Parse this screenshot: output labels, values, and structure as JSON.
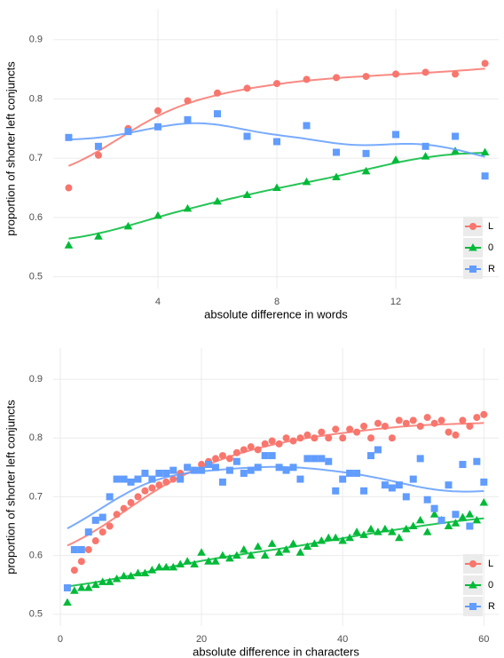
{
  "chart_data": [
    {
      "type": "scatter",
      "xlabel": "absolute difference in words",
      "ylabel": "proportion of shorter left conjuncts",
      "x": [
        1,
        2,
        3,
        4,
        5,
        6,
        7,
        8,
        9,
        10,
        11,
        12,
        13,
        14,
        15
      ],
      "series": [
        {
          "name": "L",
          "color": "#f8766d",
          "marker": "circle",
          "values": [
            0.65,
            0.705,
            0.75,
            0.78,
            0.797,
            0.81,
            0.818,
            0.826,
            0.833,
            0.836,
            0.838,
            0.842,
            0.845,
            0.842,
            0.86
          ]
        },
        {
          "name": "0",
          "color": "#00ba38",
          "marker": "triangle",
          "values": [
            0.553,
            0.568,
            0.585,
            0.603,
            0.615,
            0.627,
            0.638,
            0.65,
            0.66,
            0.668,
            0.678,
            0.697,
            0.703,
            0.712,
            0.71
          ]
        },
        {
          "name": "R",
          "color": "#619cff",
          "marker": "square",
          "values": [
            0.735,
            0.72,
            0.745,
            0.753,
            0.765,
            0.775,
            0.737,
            0.728,
            0.755,
            0.71,
            0.708,
            0.74,
            0.72,
            0.737,
            0.67
          ]
        }
      ],
      "xlim": [
        0.48,
        15.46
      ],
      "xticks": [
        4,
        8,
        12
      ],
      "ylim": [
        0.48,
        0.952
      ],
      "yticks": [
        0.5,
        0.6,
        0.7,
        0.8,
        0.9
      ],
      "grid": true,
      "legend": "bottom-right"
    },
    {
      "type": "scatter",
      "xlabel": "absolute difference in characters",
      "ylabel": "proportion of shorter left conjuncts",
      "x": [
        1,
        2,
        3,
        4,
        5,
        6,
        7,
        8,
        9,
        10,
        11,
        12,
        13,
        14,
        15,
        16,
        17,
        18,
        19,
        20,
        21,
        22,
        23,
        24,
        25,
        26,
        27,
        28,
        29,
        30,
        31,
        32,
        33,
        34,
        35,
        36,
        37,
        38,
        39,
        40,
        41,
        42,
        43,
        44,
        45,
        46,
        47,
        48,
        49,
        50,
        51,
        52,
        53,
        54,
        55,
        56,
        57,
        58,
        59,
        60
      ],
      "series": [
        {
          "name": "L",
          "color": "#f8766d",
          "marker": "circle",
          "values": [
            0.545,
            0.575,
            0.59,
            0.61,
            0.625,
            0.64,
            0.65,
            0.67,
            0.68,
            0.69,
            0.7,
            0.71,
            0.715,
            0.72,
            0.725,
            0.73,
            0.74,
            0.75,
            0.745,
            0.755,
            0.76,
            0.765,
            0.77,
            0.765,
            0.775,
            0.78,
            0.785,
            0.78,
            0.79,
            0.795,
            0.79,
            0.8,
            0.795,
            0.8,
            0.805,
            0.8,
            0.81,
            0.8,
            0.815,
            0.8,
            0.815,
            0.81,
            0.82,
            0.8,
            0.825,
            0.82,
            0.8,
            0.83,
            0.825,
            0.83,
            0.82,
            0.835,
            0.825,
            0.83,
            0.81,
            0.805,
            0.83,
            0.82,
            0.835,
            0.84
          ]
        },
        {
          "name": "0",
          "color": "#00ba38",
          "marker": "triangle",
          "values": [
            0.52,
            0.54,
            0.545,
            0.545,
            0.55,
            0.555,
            0.555,
            0.56,
            0.565,
            0.565,
            0.57,
            0.57,
            0.575,
            0.58,
            0.58,
            0.58,
            0.585,
            0.59,
            0.585,
            0.605,
            0.59,
            0.59,
            0.6,
            0.595,
            0.6,
            0.61,
            0.6,
            0.615,
            0.6,
            0.62,
            0.605,
            0.61,
            0.62,
            0.605,
            0.615,
            0.62,
            0.625,
            0.63,
            0.63,
            0.625,
            0.63,
            0.64,
            0.635,
            0.645,
            0.64,
            0.645,
            0.64,
            0.63,
            0.645,
            0.65,
            0.66,
            0.64,
            0.67,
            0.66,
            0.65,
            0.655,
            0.665,
            0.67,
            0.66,
            0.69
          ]
        },
        {
          "name": "R",
          "color": "#619cff",
          "marker": "square",
          "values": [
            0.545,
            0.61,
            0.61,
            0.64,
            0.66,
            0.665,
            0.7,
            0.73,
            0.73,
            0.725,
            0.73,
            0.74,
            0.73,
            0.74,
            0.74,
            0.745,
            0.73,
            0.75,
            0.745,
            0.745,
            0.755,
            0.75,
            0.725,
            0.745,
            0.76,
            0.74,
            0.745,
            0.75,
            0.77,
            0.77,
            0.75,
            0.745,
            0.75,
            0.73,
            0.765,
            0.765,
            0.765,
            0.76,
            0.71,
            0.73,
            0.74,
            0.74,
            0.71,
            0.77,
            0.78,
            0.72,
            0.715,
            0.72,
            0.7,
            0.73,
            0.765,
            0.695,
            0.68,
            0.66,
            0.72,
            0.67,
            0.755,
            0.65,
            0.76,
            0.725
          ]
        }
      ],
      "xlim": [
        -1,
        62.1
      ],
      "xticks": [
        0,
        20,
        40,
        60
      ],
      "ylim": [
        0.48,
        0.953
      ],
      "yticks": [
        0.5,
        0.6,
        0.7,
        0.8,
        0.9
      ],
      "grid": true,
      "legend": "bottom-right"
    }
  ]
}
